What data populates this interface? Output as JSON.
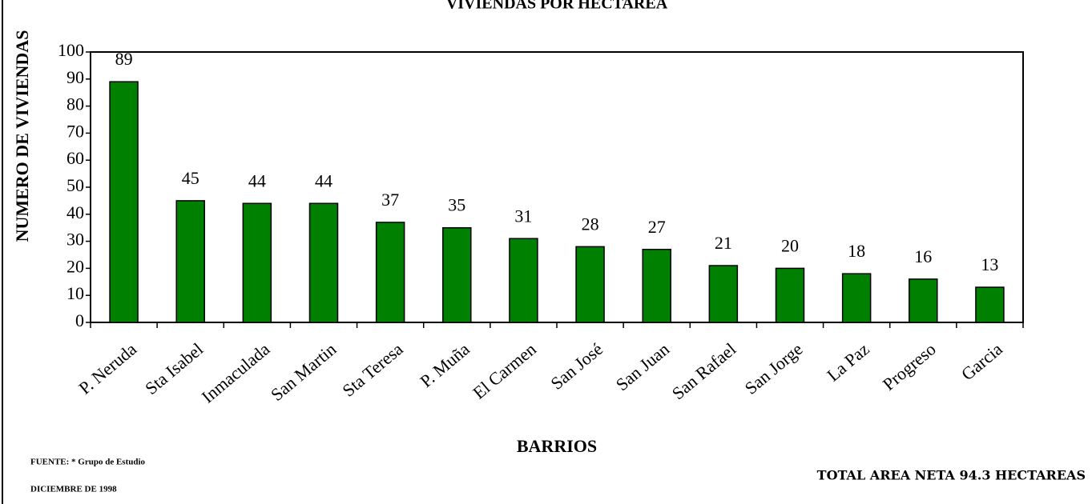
{
  "chart_data": {
    "type": "bar",
    "title": "VIVIENDAS POR HECTAREA",
    "x_label": "BARRIOS",
    "y_label": "NUMERO DE VIVIENDAS",
    "categories": [
      "P. Neruda",
      "Sta Isabel",
      "Inmaculada",
      "San Martin",
      "Sta Teresa",
      "P. Muña",
      "El Carmen",
      "San José",
      "San Juan",
      "San Rafael",
      "San Jorge",
      "La Paz",
      "Progreso",
      "Garcia"
    ],
    "values": [
      89,
      45,
      44,
      44,
      37,
      35,
      31,
      28,
      27,
      21,
      20,
      18,
      16,
      13
    ],
    "color": "#008000",
    "ylim": [
      0,
      100
    ],
    "yticks": [
      0,
      10,
      20,
      30,
      40,
      50,
      60,
      70,
      80,
      90,
      100
    ],
    "grid": false,
    "notes": {
      "source": "FUENTE: * Grupo de Estudio",
      "date": "DICIEMBRE DE 1998",
      "area": "TOTAL AREA NETA 94.3 HECTAREAS"
    }
  }
}
